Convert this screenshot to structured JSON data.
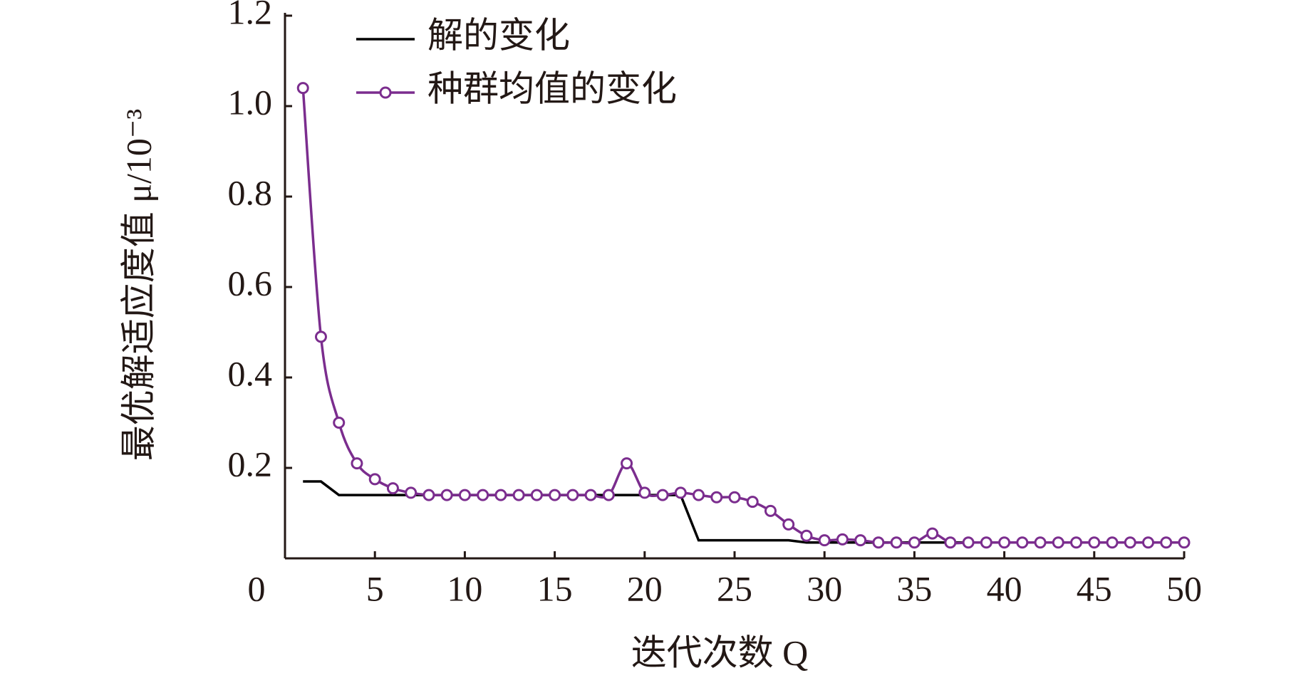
{
  "chart_data": {
    "type": "line",
    "x_label": "迭代次数 Q",
    "y_label": "最优解适应度值 μ/10⁻³",
    "x": [
      1,
      2,
      3,
      4,
      5,
      6,
      7,
      8,
      9,
      10,
      11,
      12,
      13,
      14,
      15,
      16,
      17,
      18,
      19,
      20,
      21,
      22,
      23,
      24,
      25,
      26,
      27,
      28,
      29,
      30,
      31,
      32,
      33,
      34,
      35,
      36,
      37,
      38,
      39,
      40,
      41,
      42,
      43,
      44,
      45,
      46,
      47,
      48,
      49,
      50
    ],
    "series": [
      {
        "name": "解的变化",
        "color": "#000000",
        "marker": false,
        "values": [
          0.17,
          0.17,
          0.14,
          0.14,
          0.14,
          0.14,
          0.14,
          0.14,
          0.14,
          0.14,
          0.14,
          0.14,
          0.14,
          0.14,
          0.14,
          0.14,
          0.14,
          0.14,
          0.14,
          0.14,
          0.14,
          0.14,
          0.04,
          0.04,
          0.04,
          0.04,
          0.04,
          0.04,
          0.035,
          0.035,
          0.035,
          0.035,
          0.035,
          0.035,
          0.035,
          0.035,
          0.035,
          0.035,
          0.035,
          0.035,
          0.035,
          0.035,
          0.035,
          0.035,
          0.035,
          0.035,
          0.035,
          0.035,
          0.035,
          0.035
        ]
      },
      {
        "name": "种群均值的变化",
        "color": "#7b2d8e",
        "marker": true,
        "values": [
          1.04,
          0.49,
          0.3,
          0.21,
          0.175,
          0.155,
          0.145,
          0.14,
          0.14,
          0.14,
          0.14,
          0.14,
          0.14,
          0.14,
          0.14,
          0.14,
          0.14,
          0.14,
          0.21,
          0.145,
          0.14,
          0.145,
          0.14,
          0.135,
          0.135,
          0.125,
          0.105,
          0.075,
          0.05,
          0.04,
          0.042,
          0.04,
          0.035,
          0.035,
          0.035,
          0.055,
          0.035,
          0.035,
          0.035,
          0.035,
          0.035,
          0.035,
          0.035,
          0.035,
          0.035,
          0.035,
          0.035,
          0.035,
          0.035,
          0.035
        ]
      }
    ],
    "xlim": [
      0,
      50
    ],
    "xticks": [
      0,
      5,
      10,
      15,
      20,
      25,
      30,
      35,
      40,
      45,
      50
    ],
    "ylim": [
      0,
      1.2
    ],
    "yticks": [
      0.2,
      0.4,
      0.6,
      0.8,
      {
        "value": 1,
        "label": "1.0"
      },
      1.2
    ],
    "legend": "upper left"
  }
}
